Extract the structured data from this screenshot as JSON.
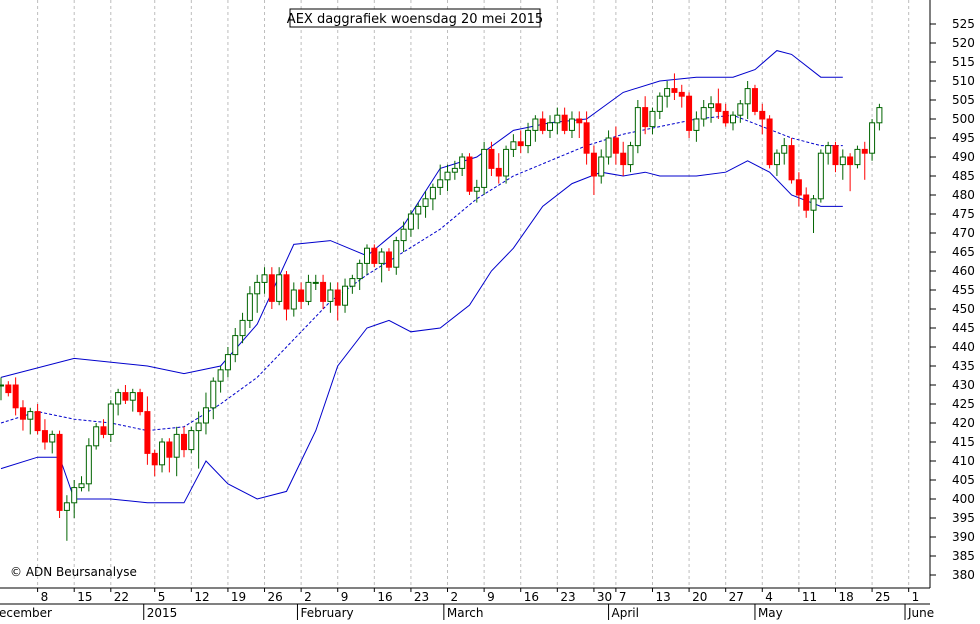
{
  "chart_data": {
    "type": "candlestick",
    "title": "AEX daggrafiek woensdag 20 mei 2015",
    "watermark": "© ADN Beursanalyse",
    "ylim": [
      375,
      530
    ],
    "y_ticks": [
      380,
      385,
      390,
      395,
      400,
      405,
      410,
      415,
      420,
      425,
      430,
      435,
      440,
      445,
      450,
      455,
      460,
      465,
      470,
      475,
      480,
      485,
      490,
      495,
      500,
      505,
      510,
      515,
      520,
      525
    ],
    "x_labels": [
      {
        "i": 5,
        "text": "8"
      },
      {
        "i": 10,
        "text": "15"
      },
      {
        "i": 15,
        "text": "22"
      },
      {
        "i": 21,
        "text": "5"
      },
      {
        "i": 26,
        "text": "12"
      },
      {
        "i": 31,
        "text": "19"
      },
      {
        "i": 36,
        "text": "26"
      },
      {
        "i": 41,
        "text": "2"
      },
      {
        "i": 46,
        "text": "9"
      },
      {
        "i": 51,
        "text": "16"
      },
      {
        "i": 56,
        "text": "23"
      },
      {
        "i": 61,
        "text": "2"
      },
      {
        "i": 66,
        "text": "9"
      },
      {
        "i": 71,
        "text": "16"
      },
      {
        "i": 76,
        "text": "23"
      },
      {
        "i": 81,
        "text": "30"
      },
      {
        "i": 84,
        "text": "7"
      },
      {
        "i": 89,
        "text": "13"
      },
      {
        "i": 94,
        "text": "20"
      },
      {
        "i": 99,
        "text": "27"
      },
      {
        "i": 104,
        "text": "4"
      },
      {
        "i": 109,
        "text": "11"
      },
      {
        "i": 114,
        "text": "18"
      },
      {
        "i": 119,
        "text": "25"
      },
      {
        "i": 124,
        "text": "1"
      }
    ],
    "month_labels": [
      {
        "i": -3,
        "text": "ecember"
      },
      {
        "i": 19.5,
        "text": "2015"
      },
      {
        "i": 40.5,
        "text": "February"
      },
      {
        "i": 60.5,
        "text": "March"
      },
      {
        "i": 83,
        "text": "April"
      },
      {
        "i": 103,
        "text": "May"
      },
      {
        "i": 123.5,
        "text": "June"
      }
    ],
    "series": [
      {
        "name": "",
        "kind": "candles",
        "values": [
          [
            430,
            432,
            426,
            430
          ],
          [
            430,
            431,
            427,
            428
          ],
          [
            430,
            432,
            422,
            424
          ],
          [
            424,
            426,
            418,
            421
          ],
          [
            421,
            424,
            417,
            423
          ],
          [
            423,
            425,
            417,
            418
          ],
          [
            418,
            421,
            413,
            415
          ],
          [
            415,
            418,
            412,
            417
          ],
          [
            417,
            418,
            395,
            397
          ],
          [
            397,
            401,
            389,
            399
          ],
          [
            399,
            405,
            395,
            403
          ],
          [
            403,
            406,
            402,
            404
          ],
          [
            404,
            416,
            402,
            414
          ],
          [
            414,
            420,
            413,
            419
          ],
          [
            419,
            421,
            416,
            417
          ],
          [
            417,
            426,
            415,
            425
          ],
          [
            425,
            429,
            422,
            428
          ],
          [
            428,
            430,
            425,
            426
          ],
          [
            426,
            429,
            423,
            428
          ],
          [
            428,
            429,
            422,
            423
          ],
          [
            423,
            427,
            409,
            412
          ],
          [
            412,
            413,
            406,
            409
          ],
          [
            409,
            416,
            407,
            415
          ],
          [
            415,
            416,
            407,
            411
          ],
          [
            411,
            419,
            406,
            417
          ],
          [
            417,
            419,
            411,
            413
          ],
          [
            413,
            419,
            412,
            418
          ],
          [
            418,
            423,
            408,
            420
          ],
          [
            420,
            428,
            417,
            424
          ],
          [
            424,
            432,
            421,
            431
          ],
          [
            431,
            435,
            428,
            434
          ],
          [
            434,
            440,
            432,
            438
          ],
          [
            438,
            445,
            436,
            443
          ],
          [
            443,
            449,
            441,
            447
          ],
          [
            447,
            456,
            445,
            454
          ],
          [
            454,
            459,
            449,
            457
          ],
          [
            457,
            461,
            454,
            459
          ],
          [
            459,
            461,
            450,
            452
          ],
          [
            452,
            461,
            451,
            459
          ],
          [
            459,
            460,
            447,
            450
          ],
          [
            450,
            457,
            448,
            455
          ],
          [
            455,
            457,
            450,
            452
          ],
          [
            452,
            459,
            451,
            457
          ],
          [
            457,
            459,
            455,
            457
          ],
          [
            457,
            459,
            450,
            452
          ],
          [
            452,
            457,
            449,
            455
          ],
          [
            455,
            457,
            447,
            451
          ],
          [
            451,
            458,
            449,
            456
          ],
          [
            456,
            459,
            454,
            458
          ],
          [
            458,
            463,
            455,
            462
          ],
          [
            462,
            467,
            459,
            466
          ],
          [
            466,
            467,
            461,
            462
          ],
          [
            462,
            466,
            457,
            465
          ],
          [
            465,
            466,
            460,
            461
          ],
          [
            461,
            469,
            459,
            468
          ],
          [
            468,
            473,
            465,
            471
          ],
          [
            471,
            476,
            469,
            475
          ],
          [
            475,
            478,
            471,
            477
          ],
          [
            477,
            481,
            474,
            479
          ],
          [
            479,
            483,
            476,
            482
          ],
          [
            482,
            488,
            480,
            484
          ],
          [
            484,
            488,
            481,
            486
          ],
          [
            486,
            489,
            484,
            487
          ],
          [
            487,
            491,
            485,
            490
          ],
          [
            490,
            491,
            480,
            481
          ],
          [
            481,
            484,
            478,
            482
          ],
          [
            482,
            494,
            480,
            492
          ],
          [
            492,
            494,
            485,
            487
          ],
          [
            487,
            491,
            483,
            485
          ],
          [
            485,
            493,
            483,
            492
          ],
          [
            492,
            496,
            490,
            494
          ],
          [
            494,
            497,
            491,
            493
          ],
          [
            493,
            499,
            491,
            497
          ],
          [
            497,
            501,
            494,
            500
          ],
          [
            500,
            502,
            496,
            497
          ],
          [
            497,
            501,
            495,
            499
          ],
          [
            499,
            503,
            496,
            501
          ],
          [
            501,
            503,
            496,
            497
          ],
          [
            497,
            502,
            495,
            500
          ],
          [
            500,
            502,
            495,
            499
          ],
          [
            499,
            502,
            488,
            491
          ],
          [
            491,
            493,
            480,
            485
          ],
          [
            485,
            492,
            483,
            490
          ],
          [
            490,
            497,
            488,
            495
          ],
          [
            495,
            498,
            488,
            491
          ],
          [
            491,
            494,
            485,
            488
          ],
          [
            488,
            494,
            486,
            493
          ],
          [
            493,
            505,
            491,
            503
          ],
          [
            503,
            506,
            496,
            498
          ],
          [
            498,
            503,
            496,
            502
          ],
          [
            502,
            507,
            500,
            506
          ],
          [
            506,
            510,
            503,
            508
          ],
          [
            508,
            512,
            505,
            507
          ],
          [
            507,
            509,
            503,
            506
          ],
          [
            506,
            507,
            495,
            497
          ],
          [
            497,
            502,
            494,
            500
          ],
          [
            500,
            505,
            498,
            503
          ],
          [
            503,
            506,
            499,
            504
          ],
          [
            504,
            508,
            500,
            502
          ],
          [
            502,
            504,
            498,
            499
          ],
          [
            499,
            502,
            497,
            501
          ],
          [
            501,
            505,
            499,
            504
          ],
          [
            504,
            510,
            500,
            508
          ],
          [
            508,
            509,
            501,
            502
          ],
          [
            502,
            504,
            496,
            500
          ],
          [
            500,
            501,
            487,
            488
          ],
          [
            488,
            492,
            485,
            491
          ],
          [
            491,
            495,
            488,
            493
          ],
          [
            493,
            495,
            483,
            484
          ],
          [
            484,
            486,
            477,
            480
          ],
          [
            480,
            482,
            474,
            476
          ],
          [
            476,
            480,
            470,
            479
          ],
          [
            479,
            492,
            478,
            491
          ],
          [
            491,
            494,
            488,
            493
          ],
          [
            493,
            494,
            486,
            488
          ],
          [
            488,
            492,
            484,
            490
          ],
          [
            490,
            491,
            481,
            488
          ],
          [
            488,
            493,
            487,
            492
          ],
          [
            492,
            494,
            484,
            491
          ],
          [
            491,
            500,
            489,
            499
          ],
          [
            499,
            504,
            497,
            503
          ]
        ]
      },
      {
        "name": "",
        "kind": "upper_band",
        "values": [
          [
            0,
            432
          ],
          [
            10,
            437
          ],
          [
            20,
            435
          ],
          [
            25,
            433
          ],
          [
            30,
            435
          ],
          [
            35,
            446
          ],
          [
            40,
            467
          ],
          [
            45,
            468
          ],
          [
            50,
            464
          ],
          [
            55,
            472
          ],
          [
            60,
            487
          ],
          [
            65,
            490
          ],
          [
            70,
            497
          ],
          [
            75,
            499
          ],
          [
            80,
            500
          ],
          [
            85,
            507
          ],
          [
            90,
            510
          ],
          [
            95,
            511
          ],
          [
            100,
            511
          ],
          [
            103,
            513
          ],
          [
            106,
            518
          ],
          [
            108,
            517
          ],
          [
            112,
            511
          ],
          [
            115,
            511
          ]
        ]
      },
      {
        "name": "",
        "kind": "middle_band",
        "values": [
          [
            0,
            420
          ],
          [
            5,
            423
          ],
          [
            10,
            421
          ],
          [
            15,
            420
          ],
          [
            20,
            418
          ],
          [
            25,
            419
          ],
          [
            30,
            425
          ],
          [
            35,
            432
          ],
          [
            40,
            442
          ],
          [
            45,
            452
          ],
          [
            50,
            459
          ],
          [
            55,
            465
          ],
          [
            60,
            471
          ],
          [
            65,
            479
          ],
          [
            70,
            485
          ],
          [
            75,
            489
          ],
          [
            80,
            493
          ],
          [
            85,
            496
          ],
          [
            90,
            498
          ],
          [
            95,
            500
          ],
          [
            100,
            501
          ],
          [
            104,
            498
          ],
          [
            108,
            495
          ],
          [
            112,
            493
          ],
          [
            115,
            493
          ]
        ]
      },
      {
        "name": "",
        "kind": "lower_band",
        "values": [
          [
            0,
            408
          ],
          [
            5,
            411
          ],
          [
            8,
            411
          ],
          [
            10,
            400
          ],
          [
            15,
            400
          ],
          [
            20,
            399
          ],
          [
            25,
            399
          ],
          [
            28,
            410
          ],
          [
            31,
            404
          ],
          [
            35,
            400
          ],
          [
            39,
            402
          ],
          [
            43,
            418
          ],
          [
            46,
            435
          ],
          [
            50,
            445
          ],
          [
            53,
            447
          ],
          [
            56,
            444
          ],
          [
            60,
            445
          ],
          [
            64,
            451
          ],
          [
            67,
            460
          ],
          [
            70,
            466
          ],
          [
            74,
            477
          ],
          [
            78,
            483
          ],
          [
            82,
            486
          ],
          [
            85,
            485
          ],
          [
            88,
            486
          ],
          [
            90,
            485
          ],
          [
            95,
            485
          ],
          [
            99,
            486
          ],
          [
            102,
            489
          ],
          [
            105,
            486
          ],
          [
            108,
            480
          ],
          [
            112,
            477
          ],
          [
            115,
            477
          ]
        ]
      }
    ]
  }
}
